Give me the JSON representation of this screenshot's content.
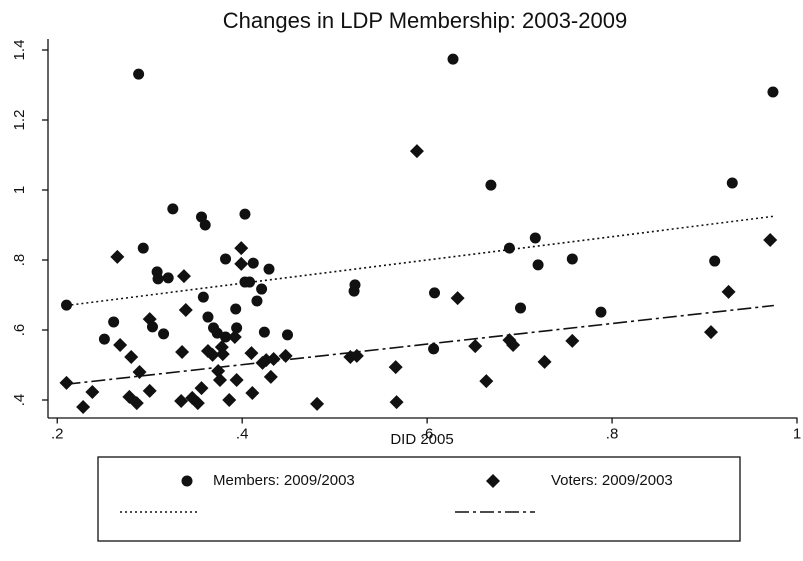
{
  "chart_data": {
    "type": "scatter",
    "title": "Changes in LDP Membership: 2003-2009",
    "x_label": "DID 2005",
    "xlim": [
      0.19,
      1.0
    ],
    "ylim": [
      0.35,
      1.43
    ],
    "xticks": [
      {
        "value": 0.2,
        "label": ".2"
      },
      {
        "value": 0.4,
        "label": ".4"
      },
      {
        "value": 0.6,
        "label": ".6"
      },
      {
        "value": 0.8,
        "label": ".8"
      },
      1
    ],
    "yticks": [
      {
        "value": 0.4,
        "label": ".4"
      },
      {
        "value": 0.6,
        "label": ".6"
      },
      {
        "value": 0.8,
        "label": ".8"
      },
      1,
      1.2,
      1.4
    ],
    "series": [
      {
        "name": "Members: 2009/2003",
        "color": "#111111",
        "marker": "circle",
        "x": [
          0.21,
          0.251,
          0.261,
          0.288,
          0.293,
          0.303,
          0.308,
          0.309,
          0.315,
          0.32,
          0.325,
          0.356,
          0.36,
          0.358,
          0.363,
          0.369,
          0.373,
          0.382,
          0.382,
          0.393,
          0.394,
          0.403,
          0.403,
          0.408,
          0.412,
          0.416,
          0.421,
          0.424,
          0.429,
          0.449,
          0.521,
          0.522,
          0.607,
          0.608,
          0.628,
          0.669,
          0.689,
          0.701,
          0.717,
          0.72,
          0.757,
          0.788,
          0.911,
          0.93,
          0.974
        ],
        "values": [
          0.671,
          0.574,
          0.623,
          1.331,
          0.834,
          0.609,
          0.766,
          0.746,
          0.589,
          0.749,
          0.946,
          0.923,
          0.9,
          0.694,
          0.637,
          0.606,
          0.591,
          0.58,
          0.803,
          0.66,
          0.606,
          0.931,
          0.737,
          0.737,
          0.791,
          0.683,
          0.717,
          0.594,
          0.774,
          0.586,
          0.711,
          0.729,
          0.546,
          0.706,
          1.374,
          1.014,
          0.834,
          0.663,
          0.863,
          0.786,
          0.803,
          0.651,
          0.797,
          1.02,
          1.28
        ]
      },
      {
        "name": "Voters: 2009/2003",
        "color": "#111111",
        "marker": "diamond",
        "x": [
          0.21,
          0.228,
          0.238,
          0.265,
          0.268,
          0.278,
          0.28,
          0.286,
          0.289,
          0.3,
          0.3,
          0.334,
          0.335,
          0.337,
          0.339,
          0.346,
          0.352,
          0.356,
          0.363,
          0.368,
          0.374,
          0.376,
          0.378,
          0.379,
          0.386,
          0.394,
          0.392,
          0.399,
          0.399,
          0.41,
          0.411,
          0.422,
          0.426,
          0.431,
          0.434,
          0.447,
          0.481,
          0.517,
          0.524,
          0.566,
          0.567,
          0.589,
          0.633,
          0.652,
          0.664,
          0.689,
          0.693,
          0.727,
          0.757,
          0.907,
          0.926,
          0.971
        ],
        "values": [
          0.449,
          0.38,
          0.423,
          0.809,
          0.557,
          0.409,
          0.523,
          0.391,
          0.48,
          0.631,
          0.426,
          0.397,
          0.537,
          0.754,
          0.657,
          0.406,
          0.391,
          0.434,
          0.54,
          0.529,
          0.483,
          0.457,
          0.551,
          0.531,
          0.4,
          0.457,
          0.58,
          0.834,
          0.789,
          0.534,
          0.42,
          0.506,
          0.514,
          0.466,
          0.517,
          0.526,
          0.389,
          0.523,
          0.526,
          0.494,
          0.394,
          1.111,
          0.691,
          0.554,
          0.454,
          0.571,
          0.557,
          0.509,
          0.569,
          0.594,
          0.709,
          0.857
        ]
      }
    ],
    "fit_lines": [
      {
        "color": "#111111",
        "style": "dotted",
        "x": [
          0.21,
          0.975
        ],
        "values": [
          0.67,
          0.925
        ]
      },
      {
        "color": "#111111",
        "style": "dashdot",
        "x": [
          0.21,
          0.975
        ],
        "values": [
          0.445,
          0.67
        ]
      }
    ]
  }
}
